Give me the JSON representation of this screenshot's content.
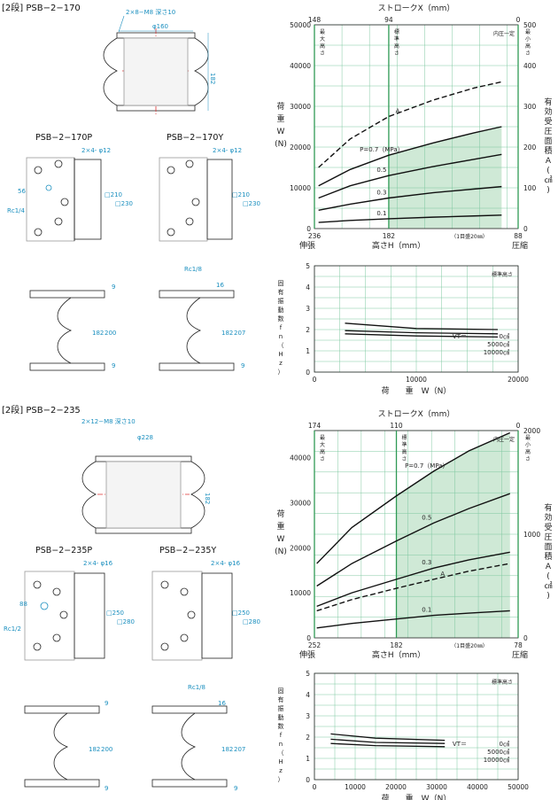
{
  "sections": [
    {
      "id": "s170",
      "heading": "[2段] PSB−2−170",
      "top_view": {
        "bolt": "2×8−M8 深さ10",
        "phi": "φ160",
        "height": "182"
      },
      "variants": [
        {
          "name": "PSB−2−170P",
          "holes": "2×4- φ12",
          "pcd": "56",
          "port": "Rc1/4",
          "inner": "□210",
          "outer": "□230",
          "side_t": "9",
          "side_h": "182",
          "side_total": "200",
          "side_b": "9"
        },
        {
          "name": "PSB−2−170Y",
          "holes": "2×4- φ12",
          "port": "Rc1/8",
          "inner": "□210",
          "outer": "□230",
          "side_t": "9",
          "side_h": "182",
          "side_total": "207",
          "side_b": "9",
          "side_port": "16"
        }
      ],
      "load_chart": {
        "stroke_label": "ストロークX（mm）",
        "stroke_ticks": [
          "148",
          "94",
          "0"
        ],
        "ylabel": "荷\n重\nW\n(N)",
        "y2label": "有効受圧面積A(㎠)",
        "y_ticks": [
          "0",
          "10000",
          "20000",
          "30000",
          "40000",
          "50000"
        ],
        "y2_ticks": [
          "0",
          "100",
          "200",
          "300",
          "400",
          "500"
        ],
        "x_ticks": [
          "236",
          "182",
          "88"
        ],
        "x_left": "伸張",
        "x_right": "圧縮",
        "xlabel": "高さH（mm）",
        "grid_note": "（1目盛20㎜）",
        "markers": [
          "最大高さ",
          "標準高さ",
          "内圧一定",
          "最小高さ"
        ],
        "curve_labels": [
          "A",
          "P=0.7（MPa）",
          "0.5",
          "0.3",
          "0.1"
        ]
      },
      "freq_chart": {
        "note": "標準高さ",
        "ylabel": "固有振動数fn（Hz）",
        "y_ticks": [
          "0",
          "1",
          "2",
          "3",
          "4",
          "5"
        ],
        "x_ticks": [
          "0",
          "10000",
          "20000"
        ],
        "xlabel": "荷　　重　W（N）",
        "legend_head": "VT＝",
        "legend": [
          "0㎤",
          "5000㎤",
          "10000㎤"
        ]
      }
    },
    {
      "id": "s235",
      "heading": "[2段] PSB−2−235",
      "top_view": {
        "bolt": "2×12−M8 深さ10",
        "phi": "φ228",
        "height": "182"
      },
      "variants": [
        {
          "name": "PSB−2−235P",
          "holes": "2×4- φ16",
          "pcd": "88",
          "port": "Rc1/2",
          "inner": "□250",
          "outer": "□280",
          "side_t": "9",
          "side_h": "182",
          "side_total": "200",
          "side_b": "9"
        },
        {
          "name": "PSB−2−235Y",
          "holes": "2×4- φ16",
          "port": "Rc1/8",
          "inner": "□250",
          "outer": "□280",
          "side_t": "9",
          "side_h": "182",
          "side_total": "207",
          "side_b": "9",
          "side_port": "16"
        }
      ],
      "load_chart": {
        "stroke_label": "ストロークX（mm）",
        "stroke_ticks": [
          "174",
          "110",
          "0"
        ],
        "ylabel": "荷\n重\nW\n(N)",
        "y2label": "有効受圧面積A(㎠)",
        "y_ticks": [
          "0",
          "10000",
          "20000",
          "30000",
          "40000"
        ],
        "y2_ticks": [
          "0",
          "1000",
          "2000"
        ],
        "x_ticks": [
          "252",
          "182",
          "78"
        ],
        "x_left": "伸張",
        "x_right": "圧縮",
        "xlabel": "高さH（mm）",
        "grid_note": "（1目盛20㎜）",
        "markers": [
          "最大高さ",
          "標準高さ",
          "内圧一定",
          "最小高さ"
        ],
        "curve_labels": [
          "P=0.7（MPa）",
          "0.5",
          "0.3",
          "A",
          "0.1"
        ]
      },
      "freq_chart": {
        "note": "標準高さ",
        "ylabel": "固有振動数fn（Hz）",
        "y_ticks": [
          "0",
          "1",
          "2",
          "3",
          "4",
          "5"
        ],
        "x_ticks": [
          "0",
          "10000",
          "20000",
          "30000",
          "40000",
          "50000"
        ],
        "xlabel": "荷　　重　W（N）",
        "legend_head": "VT＝",
        "legend": [
          "0㎤",
          "5000㎤",
          "10000㎤"
        ]
      }
    }
  ],
  "chart_data": [
    {
      "type": "line",
      "title": "",
      "xlabel": "高さH（mm）",
      "ylabel": "荷重W（N）",
      "x_range": [
        236,
        88
      ],
      "ylim": [
        0,
        50000
      ],
      "series": [
        {
          "name": "A",
          "x": [
            233,
            210,
            182,
            150,
            120,
            100
          ],
          "values": [
            15000,
            22000,
            27500,
            31500,
            34500,
            36000
          ]
        },
        {
          "name": "P=0.7（MPa）",
          "x": [
            233,
            210,
            182,
            150,
            120,
            100
          ],
          "values": [
            10500,
            14500,
            18000,
            21000,
            23500,
            25000
          ]
        },
        {
          "name": "0.5",
          "x": [
            233,
            210,
            182,
            150,
            120,
            100
          ],
          "values": [
            7500,
            10500,
            13000,
            15200,
            17000,
            18200
          ]
        },
        {
          "name": "0.3",
          "x": [
            233,
            210,
            182,
            150,
            120,
            100
          ],
          "values": [
            4500,
            6000,
            7500,
            8800,
            9700,
            10300
          ]
        },
        {
          "name": "0.1",
          "x": [
            233,
            210,
            182,
            150,
            120,
            100
          ],
          "values": [
            1500,
            2000,
            2400,
            2800,
            3100,
            3300
          ]
        }
      ]
    },
    {
      "type": "line",
      "title": "",
      "xlabel": "荷重W（N）",
      "ylabel": "固有振動数fn（Hz）",
      "x_range": [
        0,
        20000
      ],
      "ylim": [
        0,
        5
      ],
      "series": [
        {
          "name": "0㎤",
          "x": [
            3000,
            10000,
            18000
          ],
          "values": [
            2.3,
            2.05,
            2.0
          ]
        },
        {
          "name": "5000㎤",
          "x": [
            3000,
            10000,
            18000
          ],
          "values": [
            1.95,
            1.85,
            1.8
          ]
        },
        {
          "name": "10000㎤",
          "x": [
            3000,
            10000,
            18000
          ],
          "values": [
            1.8,
            1.7,
            1.65
          ]
        }
      ]
    },
    {
      "type": "line",
      "title": "",
      "xlabel": "高さH（mm）",
      "ylabel": "荷重W（N）",
      "x_range": [
        252,
        78
      ],
      "ylim": [
        0,
        46000
      ],
      "series": [
        {
          "name": "P=0.7（MPa）",
          "x": [
            250,
            220,
            182,
            150,
            120,
            85
          ],
          "values": [
            16500,
            24500,
            31500,
            37000,
            41500,
            45500
          ]
        },
        {
          "name": "0.5",
          "x": [
            250,
            220,
            182,
            150,
            120,
            85
          ],
          "values": [
            11500,
            16500,
            21500,
            25500,
            28700,
            32000
          ]
        },
        {
          "name": "0.3",
          "x": [
            250,
            220,
            182,
            150,
            120,
            85
          ],
          "values": [
            7000,
            10000,
            13000,
            15500,
            17300,
            19000
          ]
        },
        {
          "name": "A",
          "x": [
            250,
            220,
            182,
            150,
            120,
            85
          ],
          "values": [
            6000,
            8500,
            11000,
            13000,
            14800,
            16500
          ]
        },
        {
          "name": "0.1",
          "x": [
            250,
            220,
            182,
            150,
            120,
            85
          ],
          "values": [
            2200,
            3200,
            4200,
            5000,
            5500,
            6000
          ]
        }
      ]
    },
    {
      "type": "line",
      "title": "",
      "xlabel": "荷重W（N）",
      "ylabel": "固有振動数fn（Hz）",
      "x_range": [
        0,
        50000
      ],
      "ylim": [
        0,
        5
      ],
      "series": [
        {
          "name": "0㎤",
          "x": [
            4000,
            15000,
            32000
          ],
          "values": [
            2.15,
            1.95,
            1.85
          ]
        },
        {
          "name": "5000㎤",
          "x": [
            4000,
            15000,
            32000
          ],
          "values": [
            1.9,
            1.75,
            1.7
          ]
        },
        {
          "name": "10000㎤",
          "x": [
            4000,
            15000,
            32000
          ],
          "values": [
            1.7,
            1.6,
            1.55
          ]
        }
      ]
    }
  ]
}
